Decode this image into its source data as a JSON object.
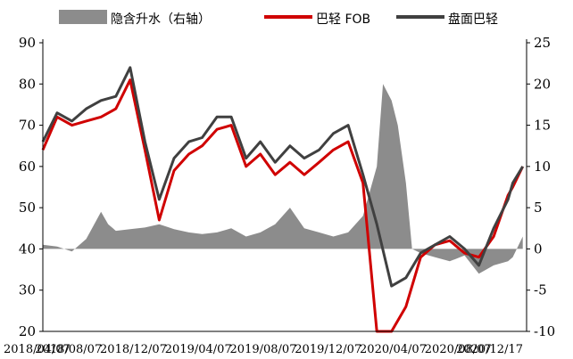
{
  "chart_data": {
    "type": "line",
    "title": "",
    "x_ticks": [
      "2018/04/07",
      "2018/08/07",
      "2018/12/07",
      "2019/04/07",
      "2019/08/07",
      "2019/12/07",
      "2020/04/07",
      "2020/08/07",
      "2020/12/17"
    ],
    "y_left": {
      "ylim": [
        20,
        90
      ],
      "ticks": [
        20,
        30,
        40,
        50,
        60,
        70,
        80,
        90
      ]
    },
    "y_right": {
      "ylim": [
        -10,
        25
      ],
      "ticks": [
        -10,
        -5,
        0,
        5,
        10,
        15,
        20,
        25
      ]
    },
    "grid": false,
    "legend_position": "top",
    "series": [
      {
        "name": "隐含升水（右轴）",
        "type": "area",
        "axis": "right",
        "color": "#8c8c8c",
        "points": [
          [
            "2018-04-07",
            0.5
          ],
          [
            "2018-05-07",
            0.3
          ],
          [
            "2018-06-07",
            -0.3
          ],
          [
            "2018-07-07",
            1.2
          ],
          [
            "2018-08-07",
            4.5
          ],
          [
            "2018-08-22",
            3.0
          ],
          [
            "2018-09-07",
            2.2
          ],
          [
            "2018-10-07",
            2.4
          ],
          [
            "2018-11-07",
            2.6
          ],
          [
            "2018-12-07",
            3.0
          ],
          [
            "2019-01-07",
            2.4
          ],
          [
            "2019-02-07",
            2.0
          ],
          [
            "2019-03-07",
            1.8
          ],
          [
            "2019-04-07",
            2.0
          ],
          [
            "2019-05-07",
            2.5
          ],
          [
            "2019-06-07",
            1.5
          ],
          [
            "2019-07-07",
            2.0
          ],
          [
            "2019-08-07",
            3.0
          ],
          [
            "2019-09-07",
            5.0
          ],
          [
            "2019-10-07",
            2.5
          ],
          [
            "2019-11-07",
            2.0
          ],
          [
            "2019-12-07",
            1.5
          ],
          [
            "2020-01-07",
            2.0
          ],
          [
            "2020-02-07",
            4.0
          ],
          [
            "2020-03-07",
            10.0
          ],
          [
            "2020-03-20",
            20.0
          ],
          [
            "2020-04-07",
            18.0
          ],
          [
            "2020-04-20",
            15.0
          ],
          [
            "2020-05-07",
            8.0
          ],
          [
            "2020-05-20",
            0.0
          ],
          [
            "2020-06-07",
            -0.5
          ],
          [
            "2020-07-07",
            -1.0
          ],
          [
            "2020-08-07",
            -1.5
          ],
          [
            "2020-09-07",
            -0.8
          ],
          [
            "2020-10-07",
            -3.0
          ],
          [
            "2020-11-07",
            -2.0
          ],
          [
            "2020-12-07",
            -1.5
          ],
          [
            "2020-12-17",
            -1.0
          ],
          [
            "2021-01-07",
            1.5
          ]
        ]
      },
      {
        "name": "巴轻 FOB",
        "type": "line",
        "axis": "left",
        "color": "#d00000",
        "points": [
          [
            "2018-04-07",
            64
          ],
          [
            "2018-05-07",
            72
          ],
          [
            "2018-06-07",
            70
          ],
          [
            "2018-07-07",
            71
          ],
          [
            "2018-08-07",
            72
          ],
          [
            "2018-09-07",
            74
          ],
          [
            "2018-10-07",
            81
          ],
          [
            "2018-11-07",
            64
          ],
          [
            "2018-12-07",
            47
          ],
          [
            "2019-01-07",
            59
          ],
          [
            "2019-02-07",
            63
          ],
          [
            "2019-03-07",
            65
          ],
          [
            "2019-04-07",
            69
          ],
          [
            "2019-05-07",
            70
          ],
          [
            "2019-06-07",
            60
          ],
          [
            "2019-07-07",
            63
          ],
          [
            "2019-08-07",
            58
          ],
          [
            "2019-09-07",
            61
          ],
          [
            "2019-10-07",
            58
          ],
          [
            "2019-11-07",
            61
          ],
          [
            "2019-12-07",
            64
          ],
          [
            "2020-01-07",
            66
          ],
          [
            "2020-02-07",
            56
          ],
          [
            "2020-03-07",
            20
          ],
          [
            "2020-04-07",
            20
          ],
          [
            "2020-05-07",
            26
          ],
          [
            "2020-06-07",
            38
          ],
          [
            "2020-07-07",
            41
          ],
          [
            "2020-08-07",
            42
          ],
          [
            "2020-09-07",
            39
          ],
          [
            "2020-10-07",
            38
          ],
          [
            "2020-11-07",
            43
          ],
          [
            "2020-12-07",
            53
          ],
          [
            "2020-12-17",
            55
          ],
          [
            "2021-01-07",
            60
          ]
        ]
      },
      {
        "name": "盘面巴轻",
        "type": "line",
        "axis": "left",
        "color": "#404040",
        "points": [
          [
            "2018-04-07",
            66
          ],
          [
            "2018-05-07",
            73
          ],
          [
            "2018-06-07",
            71
          ],
          [
            "2018-07-07",
            74
          ],
          [
            "2018-08-07",
            76
          ],
          [
            "2018-09-07",
            77
          ],
          [
            "2018-10-07",
            84
          ],
          [
            "2018-11-07",
            66
          ],
          [
            "2018-12-07",
            52
          ],
          [
            "2019-01-07",
            62
          ],
          [
            "2019-02-07",
            66
          ],
          [
            "2019-03-07",
            67
          ],
          [
            "2019-04-07",
            72
          ],
          [
            "2019-05-07",
            72
          ],
          [
            "2019-06-07",
            62
          ],
          [
            "2019-07-07",
            66
          ],
          [
            "2019-08-07",
            61
          ],
          [
            "2019-09-07",
            65
          ],
          [
            "2019-10-07",
            62
          ],
          [
            "2019-11-07",
            64
          ],
          [
            "2019-12-07",
            68
          ],
          [
            "2020-01-07",
            70
          ],
          [
            "2020-02-07",
            58
          ],
          [
            "2020-03-07",
            46
          ],
          [
            "2020-04-07",
            31
          ],
          [
            "2020-05-07",
            33
          ],
          [
            "2020-06-07",
            39
          ],
          [
            "2020-07-07",
            41
          ],
          [
            "2020-08-07",
            43
          ],
          [
            "2020-09-07",
            40
          ],
          [
            "2020-10-07",
            36
          ],
          [
            "2020-11-07",
            45
          ],
          [
            "2020-12-07",
            52
          ],
          [
            "2020-12-17",
            56
          ],
          [
            "2021-01-07",
            60
          ]
        ]
      }
    ],
    "x_domain": [
      "2018-04-07",
      "2021-01-15"
    ]
  }
}
